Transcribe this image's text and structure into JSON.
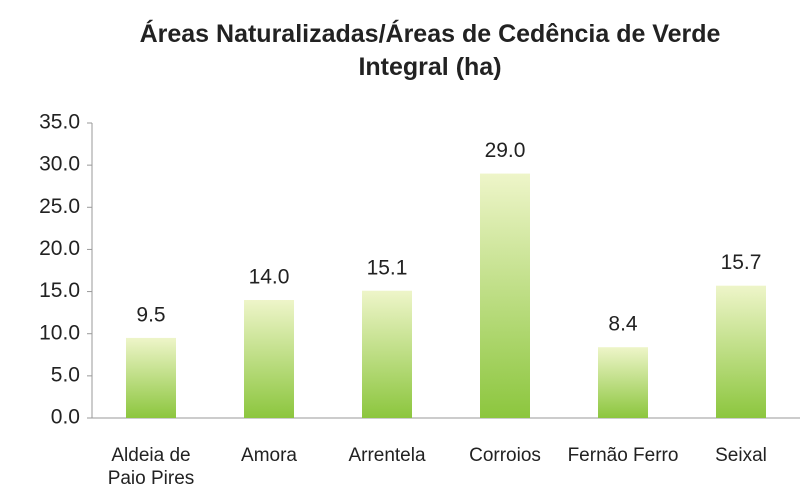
{
  "chart_data": {
    "type": "bar",
    "title": "Áreas Naturalizadas/Áreas de Cedência de Verde Integral (ha)",
    "categories": [
      "Aldeia de Paio Pires",
      "Amora",
      "Arrentela",
      "Corroios",
      "Fernão Ferro",
      "Seixal"
    ],
    "values": [
      9.5,
      14.0,
      15.1,
      29.0,
      8.4,
      15.7
    ],
    "value_labels": [
      "9.5",
      "14.0",
      "15.1",
      "29.0",
      "8.4",
      "15.7"
    ],
    "color": "#8cc63e",
    "ylim": [
      0,
      35
    ],
    "yticks": [
      {
        "value": 0,
        "label": "0.0"
      },
      {
        "value": 5,
        "label": "5.0"
      },
      {
        "value": 10,
        "label": "10.0"
      },
      {
        "value": 15,
        "label": "15.0"
      },
      {
        "value": 20,
        "label": "20.0"
      },
      {
        "value": 25,
        "label": "25.0"
      },
      {
        "value": 30,
        "label": "30.0"
      },
      {
        "value": 35,
        "label": "35.0"
      }
    ]
  }
}
